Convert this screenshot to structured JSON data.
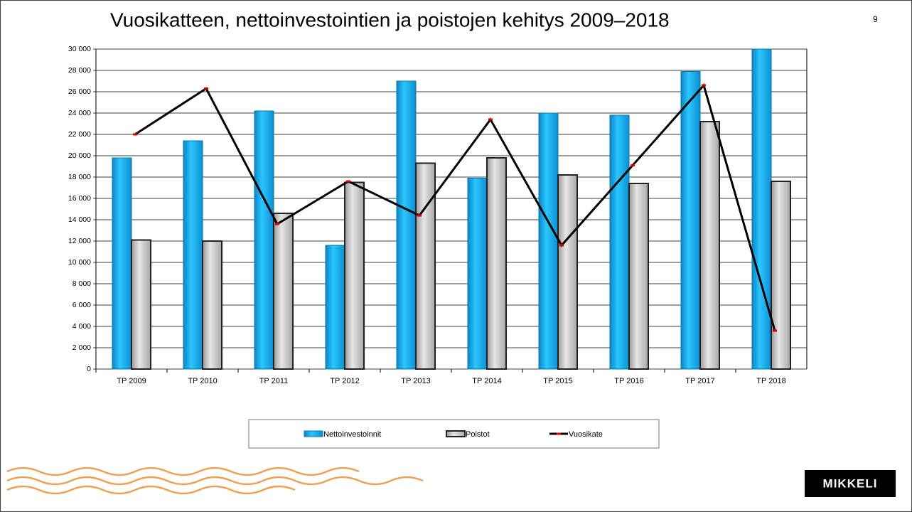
{
  "page_number": "9",
  "logo": "MIKKELI",
  "chart_data": {
    "type": "bar",
    "title": "Vuosikatteen, nettoinvestointien ja poistojen kehitys 2009–2018",
    "categories": [
      "TP 2009",
      "TP 2010",
      "TP 2011",
      "TP 2012",
      "TP 2013",
      "TP 2014",
      "TP 2015",
      "TP 2016",
      "TP 2017",
      "TP 2018"
    ],
    "series": [
      {
        "name": "Nettoinvestoinnit",
        "type": "bar",
        "color": "#12b4ee",
        "values": [
          19800,
          21400,
          24200,
          11600,
          27000,
          17900,
          24000,
          23800,
          27900,
          30000
        ]
      },
      {
        "name": "Poistot",
        "type": "bar",
        "color": "#c8c8c8",
        "values": [
          12100,
          12000,
          14600,
          17500,
          19300,
          19800,
          18200,
          17400,
          23200,
          17600
        ]
      },
      {
        "name": "Vuosikate",
        "type": "line",
        "color": "#000000",
        "values": [
          22000,
          26300,
          13600,
          17600,
          14400,
          23400,
          11600,
          19100,
          26600,
          3600
        ]
      }
    ],
    "ylim": [
      0,
      30000
    ],
    "yticks": [
      0,
      {
        "value": 2000,
        "label": "2 000"
      },
      {
        "value": 4000,
        "label": "4 000"
      },
      {
        "value": 6000,
        "label": "6 000"
      },
      {
        "value": 8000,
        "label": "8 000"
      },
      {
        "value": 10000,
        "label": "10 000"
      },
      {
        "value": 12000,
        "label": "12 000"
      },
      {
        "value": 14000,
        "label": "14 000"
      },
      {
        "value": 16000,
        "label": "16 000"
      },
      {
        "value": 18000,
        "label": "18 000"
      },
      {
        "value": 20000,
        "label": "20 000"
      },
      {
        "value": 22000,
        "label": "22 000"
      },
      {
        "value": 24000,
        "label": "24 000"
      },
      {
        "value": 26000,
        "label": "26 000"
      },
      {
        "value": 28000,
        "label": "28 000"
      },
      {
        "value": 30000,
        "label": "30 000"
      }
    ],
    "grid": true
  }
}
